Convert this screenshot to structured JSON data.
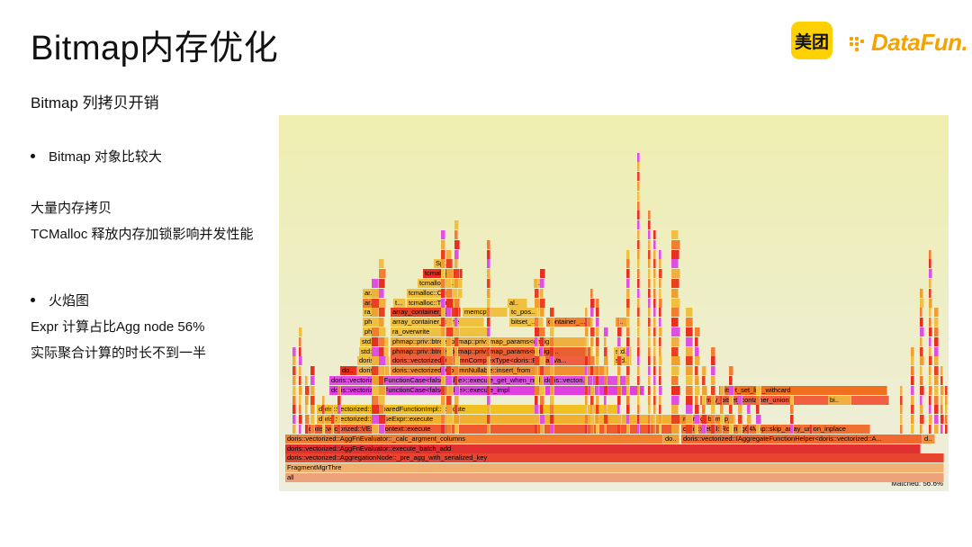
{
  "slide": {
    "title": "Bitmap内存优化",
    "subtitle": "Bitmap 列拷贝开销",
    "bullet1": "Bitmap 对象比较大",
    "line1": "大量内存拷贝",
    "line2": "TCMalloc 释放内存加锁影响并发性能",
    "bullet2": "火焰图",
    "line3": "Expr 计算占比Agg node 56%",
    "line4": "实际聚合计算的时长不到一半"
  },
  "logos": {
    "meituan": "美团",
    "datafun": "DataFun."
  },
  "flamegraph": {
    "matched": "Matched: 56.6%",
    "frames": [
      {
        "label": "all",
        "color": "#eea27a"
      },
      {
        "label": "FragmentMgrThre",
        "color": "#f0b070"
      },
      {
        "label": "doris::vectorized::AggregationNode::_pre_agg_with_serialized_key",
        "color": "#e84530"
      },
      {
        "label": "doris::vectorized::AggFnEvaluator::execute_batch_add",
        "color": "#e03030"
      },
      {
        "label": "doris::vectorized::AggFnEvaluator::_calc_argment_columns",
        "color": "#f08030"
      },
      {
        "label": "do..",
        "color": "#f0a030"
      },
      {
        "label": "doris::vectorized::IAggregateFunctionHelper<doris::vectorized::A...",
        "color": "#f06a30"
      },
      {
        "label": "d..",
        "color": "#f09040"
      },
      {
        "label": "doris::vectorized::VExprContext::execute",
        "color": "#f05a30"
      },
      {
        "label": "doris::detail::Roaring64Map::skip_array_union_inplace",
        "color": "#f07030"
      },
      {
        "label": "doris::vectorized::VCaseExpr::execute",
        "color": "#f0b030"
      },
      {
        "label": "roaring_bitmap_or_inplace",
        "color": "#f08a30"
      },
      {
        "label": "d..",
        "color": "#e8e030"
      },
      {
        "label": "doris::vectorized::PreparedFunctionImpl::execute",
        "color": "#f0c020"
      },
      {
        "label": "array_bitset_container_union",
        "color": "#f06040"
      },
      {
        "label": "bi..",
        "color": "#f0b040"
      },
      {
        "label": "doris::vectorized::FunctionCase<false, false>::execute_impl",
        "color": "#e040e0"
      },
      {
        "label": "bitset_set_list_withcard",
        "color": "#f07020"
      },
      {
        "label": "doris::vectorized::FunctionCase<false, false>::execute_get_when_null<doris::vectori...",
        "color": "#e050e0"
      },
      {
        "label": "do..",
        "color": "#e83020"
      },
      {
        "label": "doris::...",
        "color": "#f0b040"
      },
      {
        "label": "doris::vectorized::ColumnNullable::insert_from",
        "color": "#f09030"
      },
      {
        "label": "doris::...",
        "color": "#f0c040"
      },
      {
        "label": "doris::vectorized::ColumnComplexType<doris::BitmapVa...",
        "color": "#f06040"
      },
      {
        "label": "std...",
        "color": "#f0c040"
      },
      {
        "label": "std::v...",
        "color": "#f0c040"
      },
      {
        "label": "phmap::priv::btree<phmap::priv::map_params<unsign...",
        "color": "#e86030"
      },
      {
        "label": "std..",
        "color": "#f0c040"
      },
      {
        "label": "std::...",
        "color": "#f0c040"
      },
      {
        "label": "phmap::priv::btree<phmap::priv::map_params<unsig...",
        "color": "#f0b040"
      },
      {
        "label": "ph...",
        "color": "#f0c040"
      },
      {
        "label": "ra_overwrite",
        "color": "#f0c040"
      },
      {
        "label": "ph...",
        "color": "#f0c040"
      },
      {
        "label": "array_container_clone",
        "color": "#f0c040"
      },
      {
        "label": "bitset_...",
        "color": "#f0c040"
      },
      {
        "label": "container_...",
        "color": "#f08030"
      },
      {
        "label": "r..",
        "color": "#f0a040"
      },
      {
        "label": "ra_...",
        "color": "#f0c040"
      },
      {
        "label": "array_container_...",
        "color": "#e84020"
      },
      {
        "label": "memcpy",
        "color": "#f0c040"
      },
      {
        "label": "tc_pos...",
        "color": "#f0c040"
      },
      {
        "label": "ar..",
        "color": "#f08030"
      },
      {
        "label": "t...",
        "color": "#f0c040"
      },
      {
        "label": "tcmalloc::Thr..",
        "color": "#f0c040"
      },
      {
        "label": "al..",
        "color": "#f0c040"
      },
      {
        "label": "ar..",
        "color": "#f0c040"
      },
      {
        "label": "tcmalloc::Cen..",
        "color": "#f0c040"
      },
      {
        "label": "tcmalloc::...",
        "color": "#f0c040"
      },
      {
        "label": "t...",
        "color": "#f0c040"
      },
      {
        "label": "tcmallo..",
        "color": "#e83020"
      },
      {
        "label": "Spi...",
        "color": "#f0c040"
      }
    ]
  }
}
